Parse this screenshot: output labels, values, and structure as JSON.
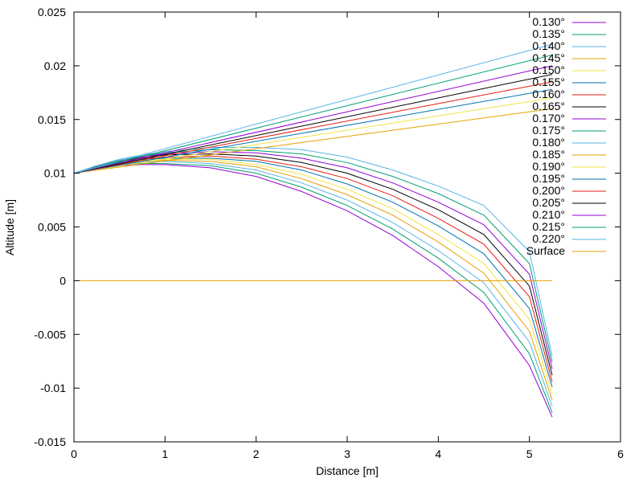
{
  "chart_data": {
    "type": "line",
    "title": "",
    "xlabel": "Distance [m]",
    "ylabel": "Altitude [m]",
    "xlim": [
      0,
      6
    ],
    "ylim": [
      -0.015,
      0.025
    ],
    "grid": false,
    "legend_position": "top-right",
    "x_ticks": [
      {
        "value": 0,
        "label": "0"
      },
      {
        "value": 1,
        "label": "1"
      },
      {
        "value": 2,
        "label": "2"
      },
      {
        "value": 3,
        "label": "3"
      },
      {
        "value": 4,
        "label": "4"
      },
      {
        "value": 5,
        "label": "5"
      },
      {
        "value": 6,
        "label": "6"
      }
    ],
    "y_ticks": [
      {
        "value": -0.015,
        "label": "-0.015"
      },
      {
        "value": -0.01,
        "label": "-0.01"
      },
      {
        "value": -0.005,
        "label": "-0.005"
      },
      {
        "value": 0,
        "label": "0"
      },
      {
        "value": 0.005,
        "label": "0.005"
      },
      {
        "value": 0.01,
        "label": "0.01"
      },
      {
        "value": 0.015,
        "label": "0.015"
      },
      {
        "value": 0.02,
        "label": "0.02"
      },
      {
        "value": 0.025,
        "label": "0.025"
      }
    ],
    "series": [
      {
        "name": "0.130°",
        "color": "#9400d3",
        "x": [
          0,
          0.25,
          0.5,
          0.75,
          1.0,
          1.5,
          2.0,
          2.5,
          3.0,
          3.5,
          4.0,
          4.5,
          5.0,
          5.25
        ],
        "y": [
          0.01,
          0.0104,
          0.0107,
          0.0108,
          0.0108,
          0.0105,
          0.0097,
          0.0083,
          0.0065,
          0.0042,
          0.0013,
          -0.0021,
          -0.0079,
          -0.0127
        ]
      },
      {
        "name": "0.135°",
        "color": "#009e73",
        "x": [
          0,
          0.25,
          0.5,
          0.75,
          1.0,
          1.5,
          2.0,
          2.5,
          3.0,
          3.5,
          4.0,
          4.5,
          5.0,
          5.25
        ],
        "y": [
          0.01,
          0.0105,
          0.0108,
          0.0109,
          0.0109,
          0.0107,
          0.01,
          0.0087,
          0.007,
          0.0048,
          0.0021,
          -0.0011,
          -0.0068,
          -0.0123
        ]
      },
      {
        "name": "0.140°",
        "color": "#56b4e9",
        "x": [
          0,
          0.25,
          0.5,
          0.75,
          1.0,
          1.5,
          2.0,
          2.5,
          3.0,
          3.5,
          4.0,
          4.5,
          5.0,
          5.25
        ],
        "y": [
          0.01,
          0.0105,
          0.0108,
          0.011,
          0.0111,
          0.0109,
          0.0103,
          0.0091,
          0.0075,
          0.0054,
          0.0028,
          -0.0002,
          -0.0057,
          -0.0117
        ]
      },
      {
        "name": "0.145°",
        "color": "#e69f00",
        "x": [
          0,
          0.25,
          0.5,
          0.75,
          1.0,
          1.5,
          2.0,
          2.5,
          3.0,
          3.5,
          4.0,
          4.5,
          5.0,
          5.25
        ],
        "y": [
          0.01,
          0.0105,
          0.0109,
          0.0111,
          0.0112,
          0.0111,
          0.0106,
          0.0095,
          0.008,
          0.0061,
          0.0036,
          0.0007,
          -0.0047,
          -0.0111
        ]
      },
      {
        "name": "0.150°",
        "color": "#f0e442",
        "x": [
          0,
          0.25,
          0.5,
          0.75,
          1.0,
          1.5,
          2.0,
          2.5,
          3.0,
          3.5,
          4.0,
          4.5,
          5.0,
          5.25
        ],
        "y": [
          0.01,
          0.0106,
          0.0109,
          0.0112,
          0.0113,
          0.0113,
          0.0108,
          0.0099,
          0.0085,
          0.0067,
          0.0043,
          0.0016,
          -0.0036,
          -0.0105
        ]
      },
      {
        "name": "0.155°",
        "color": "#0072b2",
        "x": [
          0,
          0.25,
          0.5,
          0.75,
          1.0,
          1.5,
          2.0,
          2.5,
          3.0,
          3.5,
          4.0,
          4.5,
          5.0,
          5.25
        ],
        "y": [
          0.01,
          0.0106,
          0.011,
          0.0113,
          0.0114,
          0.0114,
          0.0111,
          0.0103,
          0.009,
          0.0073,
          0.0051,
          0.0025,
          -0.0026,
          -0.0099
        ]
      },
      {
        "name": "0.160°",
        "color": "#e51e10",
        "x": [
          0,
          0.25,
          0.5,
          0.75,
          1.0,
          1.5,
          2.0,
          2.5,
          3.0,
          3.5,
          4.0,
          4.5,
          5.0,
          5.25
        ],
        "y": [
          0.01,
          0.0106,
          0.0111,
          0.0114,
          0.0115,
          0.0116,
          0.0113,
          0.0106,
          0.0095,
          0.0079,
          0.0058,
          0.0034,
          -0.0015,
          -0.0094
        ]
      },
      {
        "name": "0.165°",
        "color": "#000000",
        "x": [
          0,
          0.25,
          0.5,
          0.75,
          1.0,
          1.5,
          2.0,
          2.5,
          3.0,
          3.5,
          4.0,
          4.5,
          5.0,
          5.25
        ],
        "y": [
          0.01,
          0.0106,
          0.0111,
          0.0115,
          0.0117,
          0.0118,
          0.0116,
          0.011,
          0.01,
          0.0085,
          0.0066,
          0.0043,
          -0.0005,
          -0.0088
        ]
      },
      {
        "name": "0.170°",
        "color": "#9400d3",
        "x": [
          0,
          0.25,
          0.5,
          0.75,
          1.0,
          1.5,
          2.0,
          2.5,
          3.0,
          3.5,
          4.0,
          4.5,
          5.0,
          5.25
        ],
        "y": [
          0.01,
          0.0107,
          0.0112,
          0.0115,
          0.0118,
          0.012,
          0.0119,
          0.0114,
          0.0105,
          0.0091,
          0.0073,
          0.0052,
          0.0006,
          -0.0082
        ]
      },
      {
        "name": "0.175°",
        "color": "#009e73",
        "x": [
          0,
          0.25,
          0.5,
          0.75,
          1.0,
          1.5,
          2.0,
          2.5,
          3.0,
          3.5,
          4.0,
          4.5,
          5.0,
          5.25
        ],
        "y": [
          0.01,
          0.0107,
          0.0112,
          0.0116,
          0.0119,
          0.0122,
          0.0121,
          0.0118,
          0.011,
          0.0097,
          0.0081,
          0.0061,
          0.0016,
          -0.0076
        ]
      },
      {
        "name": "0.180°",
        "color": "#56b4e9",
        "x": [
          0,
          0.25,
          0.5,
          0.75,
          1.0,
          1.5,
          2.0,
          2.5,
          3.0,
          3.5,
          4.0,
          4.5,
          5.0,
          5.25
        ],
        "y": [
          0.01,
          0.0107,
          0.0113,
          0.0117,
          0.012,
          0.0124,
          0.0124,
          0.0122,
          0.0115,
          0.0103,
          0.0088,
          0.007,
          0.0027,
          -0.007
        ]
      },
      {
        "name": "0.185°",
        "color": "#e69f00",
        "x": [
          0,
          5.25
        ],
        "y": [
          0.01,
          0.016
        ]
      },
      {
        "name": "0.190°",
        "color": "#f0e442",
        "x": [
          0,
          5.25
        ],
        "y": [
          0.01,
          0.017
        ]
      },
      {
        "name": "0.195°",
        "color": "#0072b2",
        "x": [
          0,
          5.25
        ],
        "y": [
          0.01,
          0.0178
        ]
      },
      {
        "name": "0.200°",
        "color": "#e51e10",
        "x": [
          0,
          5.25
        ],
        "y": [
          0.01,
          0.0185
        ]
      },
      {
        "name": "0.205°",
        "color": "#000000",
        "x": [
          0,
          5.25
        ],
        "y": [
          0.01,
          0.0192
        ]
      },
      {
        "name": "0.210°",
        "color": "#9400d3",
        "x": [
          0,
          5.25
        ],
        "y": [
          0.01,
          0.02
        ]
      },
      {
        "name": "0.215°",
        "color": "#009e73",
        "x": [
          0,
          5.25
        ],
        "y": [
          0.01,
          0.021
        ]
      },
      {
        "name": "0.220°",
        "color": "#56b4e9",
        "x": [
          0,
          5.25
        ],
        "y": [
          0.01,
          0.022
        ]
      },
      {
        "name": "Surface",
        "color": "#e69f00",
        "x": [
          0,
          5.25
        ],
        "y": [
          0,
          0
        ]
      }
    ]
  }
}
